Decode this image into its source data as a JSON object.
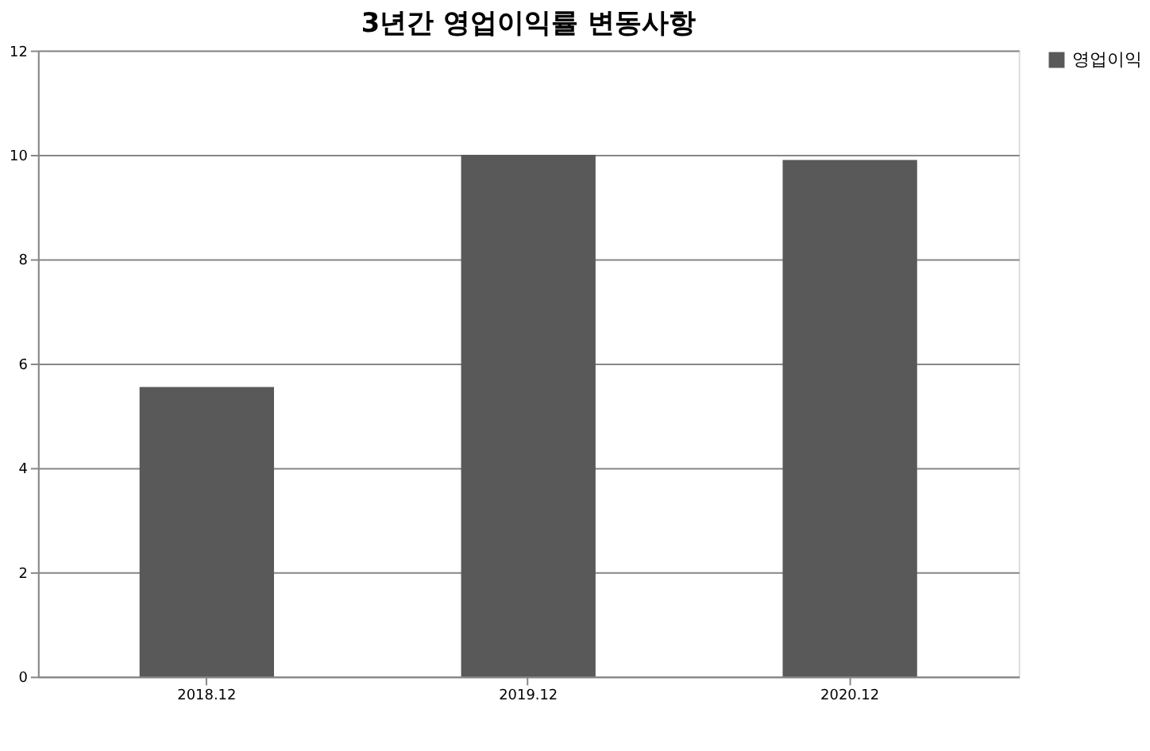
{
  "chart_data": {
    "type": "bar",
    "title": "3년간 영업이익률 변동사항",
    "categories": [
      "2018.12",
      "2019.12",
      "2020.12"
    ],
    "series": [
      {
        "name": "영업이익",
        "color": "#595959",
        "values": [
          5.55,
          10.0,
          9.9
        ]
      }
    ],
    "ylim": [
      0,
      12
    ],
    "yticks": [
      0,
      2,
      4,
      6,
      8,
      10,
      12
    ],
    "grid": "y",
    "legend": "right"
  }
}
